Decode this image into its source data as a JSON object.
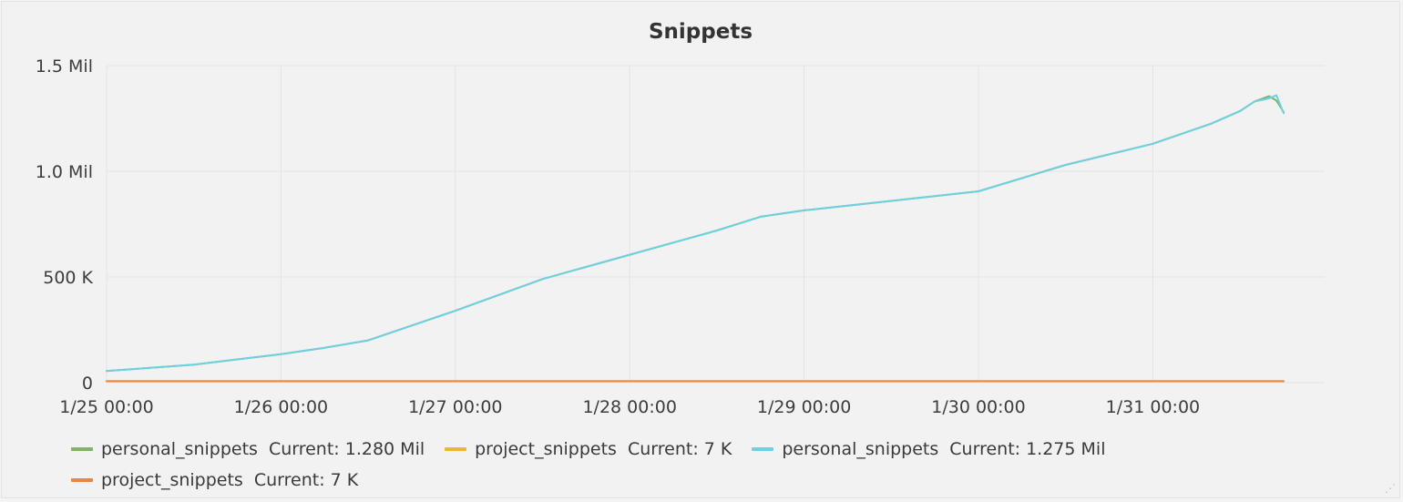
{
  "chart_data": {
    "type": "line",
    "title": "Snippets",
    "xlabel": "",
    "ylabel": "",
    "x_ticks": [
      "1/25 00:00",
      "1/26 00:00",
      "1/27 00:00",
      "1/28 00:00",
      "1/29 00:00",
      "1/30 00:00",
      "1/31 00:00"
    ],
    "y_ticks": [
      "0",
      "500 K",
      "1.0 Mil",
      "1.5 Mil"
    ],
    "ylim": [
      0,
      1500000
    ],
    "grid": true,
    "legend_position": "bottom",
    "series": [
      {
        "name": "personal_snippets",
        "legend_value": "Current: 1.280 Mil",
        "color": "#7eb26d",
        "x": [
          "1/25 00:00",
          "1/25 12:00",
          "1/26 00:00",
          "1/26 06:00",
          "1/26 12:00",
          "1/27 00:00",
          "1/27 12:00",
          "1/28 00:00",
          "1/28 12:00",
          "1/28 18:00",
          "1/29 00:00",
          "1/29 12:00",
          "1/30 00:00",
          "1/30 12:00",
          "1/31 00:00",
          "1/31 08:00",
          "1/31 12:00",
          "1/31 14:00",
          "1/31 16:00",
          "1/31 17:00",
          "1/31 18:00"
        ],
        "values": [
          55000,
          85000,
          135000,
          165000,
          200000,
          340000,
          490000,
          605000,
          720000,
          785000,
          815000,
          860000,
          905000,
          1030000,
          1130000,
          1225000,
          1285000,
          1330000,
          1355000,
          1335000,
          1280000
        ]
      },
      {
        "name": "project_snippets",
        "legend_value": "Current: 7 K",
        "color": "#eab839",
        "x": [
          "1/25 00:00",
          "1/31 18:00"
        ],
        "values": [
          7000,
          7000
        ]
      },
      {
        "name": "personal_snippets",
        "legend_value": "Current: 1.275 Mil",
        "color": "#6ed0e0",
        "x": [
          "1/25 00:00",
          "1/25 12:00",
          "1/26 00:00",
          "1/26 06:00",
          "1/26 12:00",
          "1/27 00:00",
          "1/27 12:00",
          "1/28 00:00",
          "1/28 12:00",
          "1/28 18:00",
          "1/29 00:00",
          "1/29 12:00",
          "1/30 00:00",
          "1/30 12:00",
          "1/31 00:00",
          "1/31 08:00",
          "1/31 12:00",
          "1/31 14:00",
          "1/31 16:00",
          "1/31 17:00",
          "1/31 18:00"
        ],
        "values": [
          55000,
          85000,
          135000,
          165000,
          200000,
          340000,
          490000,
          605000,
          720000,
          785000,
          815000,
          860000,
          905000,
          1030000,
          1130000,
          1225000,
          1285000,
          1330000,
          1345000,
          1360000,
          1275000
        ]
      },
      {
        "name": "project_snippets",
        "legend_value": "Current: 7 K",
        "color": "#ef843c",
        "x": [
          "1/25 00:00",
          "1/31 18:00"
        ],
        "values": [
          7000,
          7000
        ]
      }
    ]
  }
}
